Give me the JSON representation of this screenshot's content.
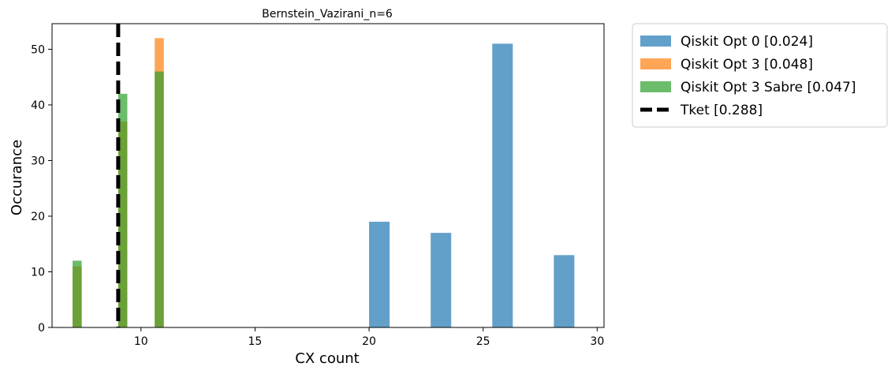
{
  "chart_data": {
    "type": "bar",
    "title": "Bernstein_Vazirani_n=6",
    "xlabel": "CX count",
    "ylabel": "Occurance",
    "xlim": [
      6.1,
      30.3
    ],
    "ylim": [
      0,
      54.6
    ],
    "xticks": [
      10,
      15,
      20,
      25,
      30
    ],
    "yticks": [
      0,
      10,
      20,
      30,
      40,
      50
    ],
    "legend_position": "outside-right",
    "series": [
      {
        "name": "Qiskit Opt 0 [0.024]",
        "color": "#1f77b4",
        "bars": [
          {
            "x0": 20.0,
            "x1": 20.9,
            "value": 19
          },
          {
            "x0": 22.7,
            "x1": 23.6,
            "value": 17
          },
          {
            "x0": 25.4,
            "x1": 26.3,
            "value": 51
          },
          {
            "x0": 28.1,
            "x1": 29.0,
            "value": 13
          }
        ]
      },
      {
        "name": "Qiskit Opt 3 [0.048]",
        "color": "#ff7f0e",
        "bars": [
          {
            "x0": 7.0,
            "x1": 7.4,
            "value": 11
          },
          {
            "x0": 9.0,
            "x1": 9.4,
            "value": 37
          },
          {
            "x0": 10.6,
            "x1": 11.0,
            "value": 52
          }
        ]
      },
      {
        "name": "Qiskit Opt 3 Sabre [0.047]",
        "color": "#2ca02c",
        "bars": [
          {
            "x0": 7.0,
            "x1": 7.4,
            "value": 12
          },
          {
            "x0": 9.0,
            "x1": 9.4,
            "value": 42
          },
          {
            "x0": 10.6,
            "x1": 11.0,
            "value": 46
          }
        ]
      }
    ],
    "vlines": [
      {
        "name": "Tket [0.288]",
        "x": 9.0,
        "color": "#000000",
        "style": "dashed"
      }
    ]
  }
}
